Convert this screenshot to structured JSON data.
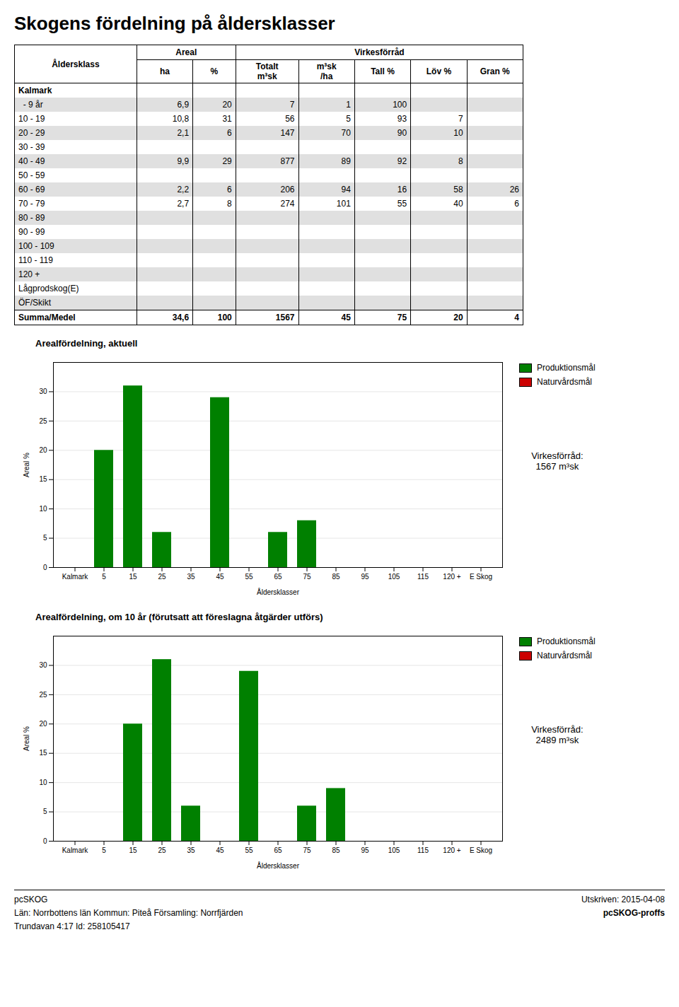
{
  "title": "Skogens fördelning på åldersklasser",
  "table": {
    "header": "Åldersklass",
    "groups": [
      {
        "label": "Areal",
        "columns": [
          "ha",
          "%"
        ]
      },
      {
        "label": "Virkesförråd",
        "columns": [
          "Totalt\nm³sk",
          "m³sk\n/ha",
          "Tall %",
          "Löv %",
          "Gran %"
        ]
      }
    ],
    "rows": [
      [
        "Kalmark",
        null,
        null,
        null,
        null,
        null,
        null,
        null
      ],
      [
        "  - 9 år",
        "6,9",
        "20",
        "7",
        "1",
        "100",
        null,
        null
      ],
      [
        "10 - 19",
        "10,8",
        "31",
        "56",
        "5",
        "93",
        "7",
        null
      ],
      [
        "20 - 29",
        "2,1",
        "6",
        "147",
        "70",
        "90",
        "10",
        null
      ],
      [
        "30 - 39",
        null,
        null,
        null,
        null,
        null,
        null,
        null
      ],
      [
        "40 - 49",
        "9,9",
        "29",
        "877",
        "89",
        "92",
        "8",
        null
      ],
      [
        "50 - 59",
        null,
        null,
        null,
        null,
        null,
        null,
        null
      ],
      [
        "60 - 69",
        "2,2",
        "6",
        "206",
        "94",
        "16",
        "58",
        "26"
      ],
      [
        "70 - 79",
        "2,7",
        "8",
        "274",
        "101",
        "55",
        "40",
        "6"
      ],
      [
        "80 - 89",
        null,
        null,
        null,
        null,
        null,
        null,
        null
      ],
      [
        "90 - 99",
        null,
        null,
        null,
        null,
        null,
        null,
        null
      ],
      [
        "100 - 109",
        null,
        null,
        null,
        null,
        null,
        null,
        null
      ],
      [
        "110 - 119",
        null,
        null,
        null,
        null,
        null,
        null,
        null
      ],
      [
        "120 +",
        null,
        null,
        null,
        null,
        null,
        null,
        null
      ],
      [
        "Lågprodskog(E)",
        null,
        null,
        null,
        null,
        null,
        null,
        null
      ],
      [
        "ÖF/Skikt",
        null,
        null,
        null,
        null,
        null,
        null,
        null
      ],
      [
        "Summa/Medel",
        "34,6",
        "100",
        "1567",
        "45",
        "75",
        "20",
        "4"
      ]
    ]
  },
  "chart_data": [
    {
      "type": "bar",
      "title": "Arealfördelning, aktuell",
      "xlabel": "Åldersklasser",
      "ylabel": "Areal %",
      "categories": [
        "Kalmark",
        "5",
        "15",
        "25",
        "35",
        "45",
        "55",
        "65",
        "75",
        "85",
        "95",
        "105",
        "115",
        "120 +",
        "E Skog"
      ],
      "series": [
        {
          "name": "Produktionsmål",
          "color": "#008000",
          "values": [
            0,
            20,
            31,
            6,
            0,
            29,
            0,
            6,
            8,
            0,
            0,
            0,
            0,
            0,
            0
          ]
        },
        {
          "name": "Naturvårdsmål",
          "color": "#cc0000",
          "values": [
            0,
            0,
            0,
            0,
            0,
            0,
            0,
            0,
            0,
            0,
            0,
            0,
            0,
            0,
            0
          ]
        }
      ],
      "ylim": [
        0,
        35
      ],
      "yticks": [
        0,
        5,
        10,
        15,
        20,
        25,
        30
      ],
      "grid": true,
      "legend": "right",
      "annotations": [
        "Virkesförråd:\n1567 m³sk"
      ]
    },
    {
      "type": "bar",
      "title": "Arealfördelning, om 10 år (förutsatt att föreslagna åtgärder utförs)",
      "xlabel": "Åldersklasser",
      "ylabel": "Areal %",
      "categories": [
        "Kalmark",
        "5",
        "15",
        "25",
        "35",
        "45",
        "55",
        "65",
        "75",
        "85",
        "95",
        "105",
        "115",
        "120 +",
        "E Skog"
      ],
      "series": [
        {
          "name": "Produktionsmål",
          "color": "#008000",
          "values": [
            0,
            0,
            20,
            31,
            6,
            0,
            29,
            0,
            6,
            9,
            0,
            0,
            0,
            0,
            0
          ]
        },
        {
          "name": "Naturvårdsmål",
          "color": "#cc0000",
          "values": [
            0,
            0,
            0,
            0,
            0,
            0,
            0,
            0,
            0,
            0,
            0,
            0,
            0,
            0,
            0
          ]
        }
      ],
      "ylim": [
        0,
        35
      ],
      "yticks": [
        0,
        5,
        10,
        15,
        20,
        25,
        30
      ],
      "grid": true,
      "legend": "right",
      "annotations": [
        "Virkesförråd:\n2489 m³sk"
      ]
    }
  ],
  "footer": {
    "left": [
      "pcSKOG",
      "Län: Norrbottens län   Kommun: Piteå   Församling: Norrfjärden",
      "Trundavan 4:17 Id: 258105417"
    ],
    "right": [
      "Utskriven: 2015-04-08",
      "pcSKOG-proffs"
    ]
  }
}
